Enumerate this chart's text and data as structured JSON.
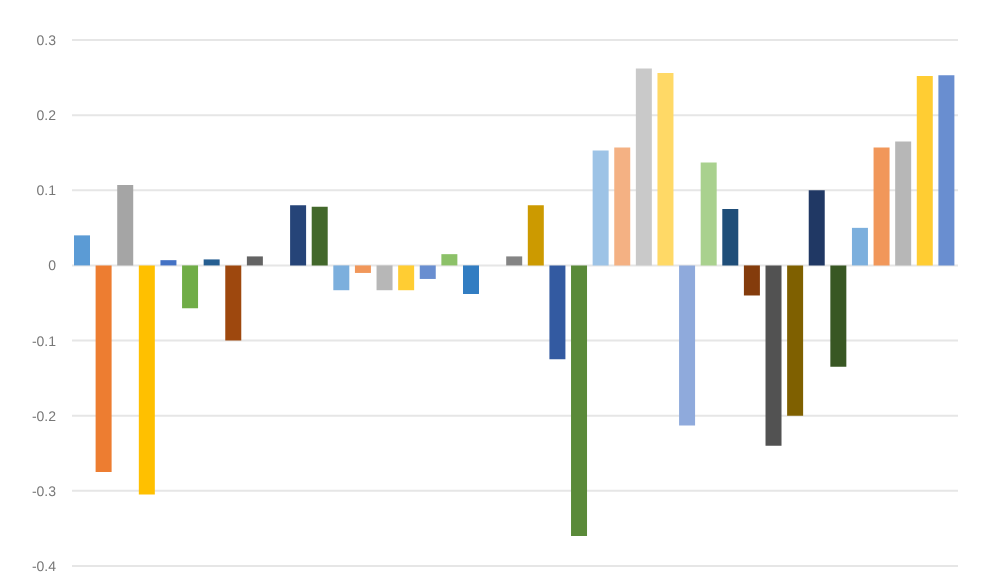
{
  "chart_data": {
    "type": "bar",
    "categories": [
      null,
      null,
      null,
      null,
      null,
      null,
      null,
      null,
      null,
      null,
      null,
      null,
      null,
      null,
      null,
      null,
      null,
      null,
      null,
      null,
      null,
      null,
      null,
      null,
      null,
      null,
      null,
      null,
      null,
      null,
      null,
      null,
      null,
      null,
      null,
      null,
      null,
      null,
      null,
      null,
      null
    ],
    "values": [
      0.04,
      -0.275,
      0.107,
      -0.305,
      0.007,
      -0.057,
      0.008,
      -0.1,
      0.012,
      null,
      0.08,
      0.078,
      -0.033,
      -0.01,
      -0.033,
      -0.033,
      -0.018,
      0.015,
      -0.038,
      null,
      0.012,
      0.08,
      -0.125,
      -0.36,
      0.153,
      0.157,
      0.262,
      0.256,
      -0.213,
      0.137,
      0.075,
      -0.04,
      -0.24,
      -0.2,
      0.1,
      -0.135,
      0.05,
      0.157,
      0.165,
      0.252,
      0.253
    ],
    "colors": [
      "#5b9bd5",
      "#ed7d31",
      "#a5a5a5",
      "#ffc000",
      "#4472c4",
      "#70ad47",
      "#255e91",
      "#9e480e",
      "#636363",
      "#997300",
      "#264478",
      "#43682b",
      "#7cafdd",
      "#f1975a",
      "#b7b7b7",
      "#ffcd33",
      "#698ed0",
      "#8cc168",
      "#327dc2",
      "#d26012",
      "#848484",
      "#cc9a00",
      "#335aa1",
      "#5a8a39",
      "#9dc3e6",
      "#f4b183",
      "#c9c9c9",
      "#ffd966",
      "#8faadc",
      "#a9d18e",
      "#1f4e79",
      "#843c0c",
      "#525252",
      "#7f6000",
      "#203864",
      "#385723",
      "#7cafdd",
      "#f1975a",
      "#b7b7b7",
      "#ffcd33",
      "#698ed0"
    ],
    "ylim": [
      -0.4,
      0.3
    ],
    "yticks": [
      -0.4,
      -0.3,
      -0.2,
      -0.1,
      0,
      0.1,
      0.2,
      0.3
    ],
    "grid": "y",
    "legend": false
  }
}
